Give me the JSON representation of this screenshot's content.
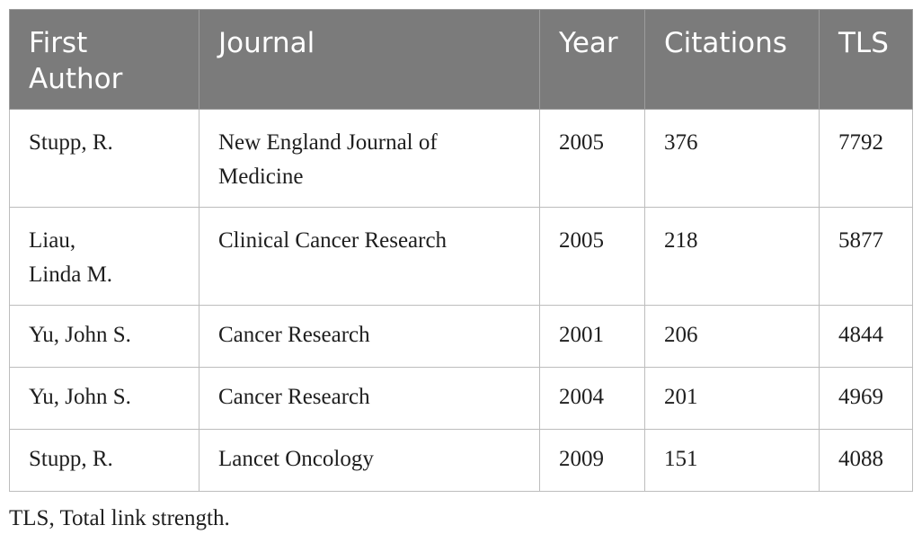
{
  "table": {
    "headers": [
      "First Author",
      "Journal",
      "Year",
      "Citations",
      "TLS"
    ],
    "rows": [
      {
        "author": "Stupp, R.",
        "journal": "New England Journal of Medicine",
        "year": "2005",
        "citations": "376",
        "tls": "7792"
      },
      {
        "author": "Liau, Linda M.",
        "journal": "Clinical Cancer Research",
        "year": "2005",
        "citations": "218",
        "tls": "5877"
      },
      {
        "author": "Yu, John S.",
        "journal": "Cancer Research",
        "year": "2001",
        "citations": "206",
        "tls": "4844"
      },
      {
        "author": "Yu, John S.",
        "journal": "Cancer Research",
        "year": "2004",
        "citations": "201",
        "tls": "4969"
      },
      {
        "author": "Stupp, R.",
        "journal": "Lancet Oncology",
        "year": "2009",
        "citations": "151",
        "tls": "4088"
      }
    ]
  },
  "footnote": "TLS, Total link strength.",
  "colors": {
    "header_background": "#7b7b7b",
    "header_text": "#ffffff",
    "grid_line": "#bdbdbd"
  }
}
